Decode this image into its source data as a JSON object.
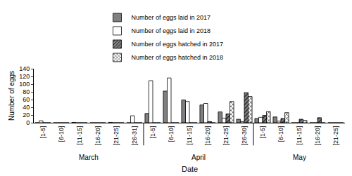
{
  "chart_data": {
    "type": "bar",
    "x_label": "Date",
    "y_label": "Number of eggs",
    "categories": [
      "[1-5]",
      "[6-10]",
      "[11-15]",
      "[16-20]",
      "[21-25]",
      "[26-31]",
      "[1-5]",
      "[6-10]",
      "[11-15]",
      "[16-20]",
      "[21-25]",
      "[26-30]",
      "[1-5]",
      "[6-10]",
      "[11-15]",
      "[16-20]",
      "[21-25]"
    ],
    "category_groups": [
      "March",
      "March",
      "March",
      "March",
      "March",
      "March",
      "April",
      "April",
      "April",
      "April",
      "April",
      "April",
      "May",
      "May",
      "May",
      "May",
      "May"
    ],
    "series": [
      {
        "name": "Number of eggs laid in 2017",
        "color": "#808080",
        "marker": "solid",
        "values": [
          0,
          0,
          1,
          0,
          1,
          0,
          24,
          82,
          59,
          46,
          28,
          9,
          11,
          15,
          0,
          0,
          0
        ]
      },
      {
        "name": "Number of eggs laid in 2018",
        "color": "#ffffff",
        "marker": "solid",
        "values": [
          5,
          0,
          0,
          0,
          0,
          18,
          109,
          116,
          55,
          50,
          12,
          3,
          14,
          4,
          0,
          0,
          0
        ]
      },
      {
        "name": "Number of eggs hatched in 2017",
        "color": "#808080",
        "marker": "hatch",
        "values": [
          0,
          0,
          0,
          0,
          0,
          0,
          0,
          0,
          0,
          3,
          23,
          78,
          19,
          11,
          9,
          13,
          0
        ]
      },
      {
        "name": "Number of eggs hatched in 2018",
        "color": "#ffffff",
        "marker": "crosshatch",
        "values": [
          0,
          0,
          0,
          0,
          0,
          0,
          0,
          0,
          0,
          0,
          55,
          68,
          29,
          26,
          6,
          0,
          0
        ]
      }
    ],
    "ylim": [
      0,
      140
    ],
    "yticks": [
      0,
      20,
      40,
      60,
      80,
      100,
      120,
      140
    ],
    "grid": false,
    "legend": "top"
  }
}
